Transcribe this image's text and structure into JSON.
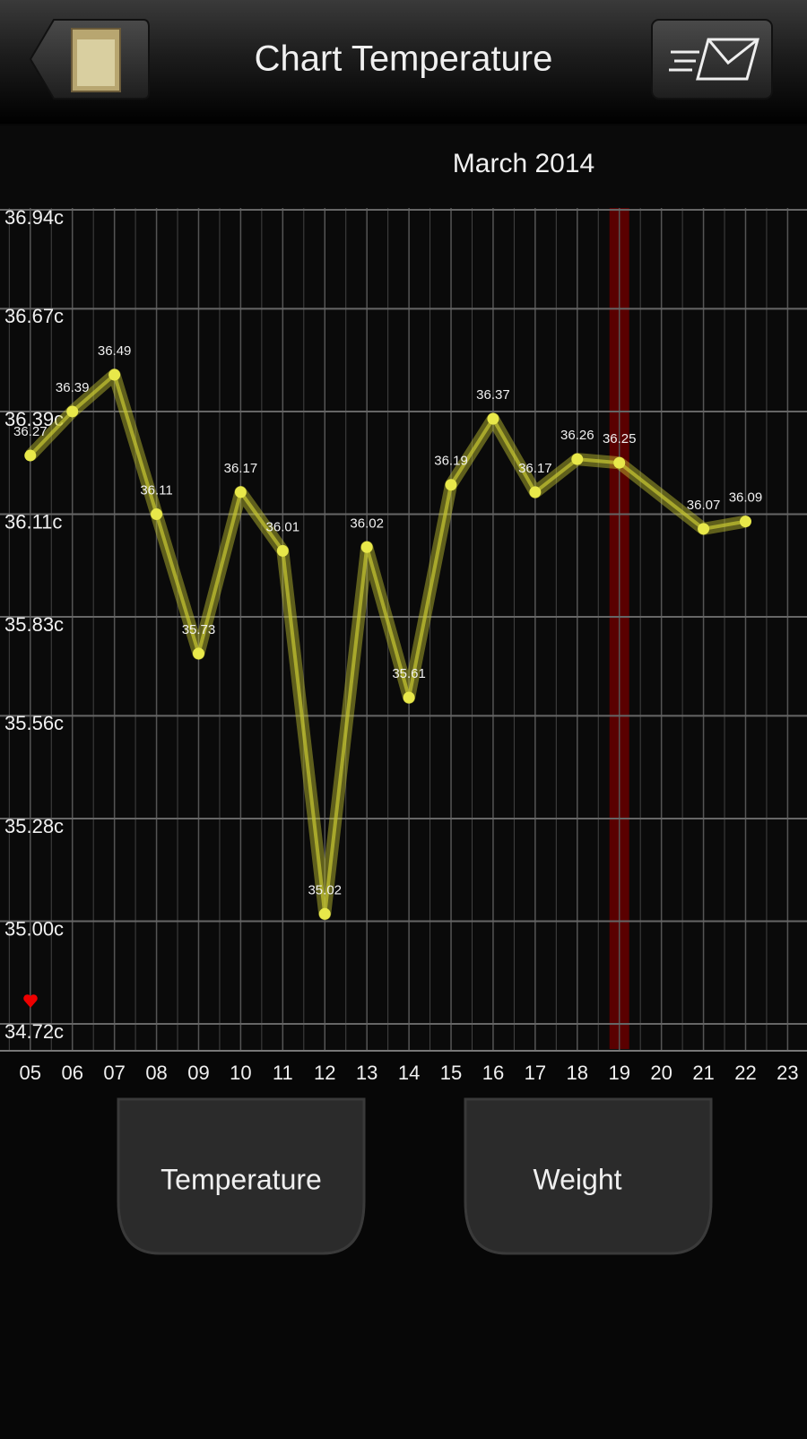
{
  "header": {
    "title": "Chart Temperature"
  },
  "chart_data": {
    "type": "line",
    "subtitle": "March 2014",
    "x": [
      5,
      6,
      7,
      8,
      9,
      10,
      11,
      12,
      13,
      14,
      15,
      16,
      17,
      18,
      19,
      21,
      22
    ],
    "series": [
      {
        "color": "#c8c832",
        "values": [
          36.27,
          36.39,
          36.49,
          36.11,
          35.73,
          36.17,
          36.01,
          35.02,
          36.02,
          35.61,
          36.19,
          36.37,
          36.17,
          36.26,
          36.25,
          36.07,
          36.09
        ]
      }
    ],
    "xlim": [
      4.28,
      23.46
    ],
    "xticks": [
      {
        "value": 5,
        "label": "05"
      },
      {
        "value": 6,
        "label": "06"
      },
      {
        "value": 7,
        "label": "07"
      },
      {
        "value": 8,
        "label": "08"
      },
      {
        "value": 9,
        "label": "09"
      },
      10,
      11,
      12,
      13,
      14,
      15,
      16,
      17,
      18,
      19,
      20,
      21,
      22,
      23
    ],
    "ylim": [
      34.72,
      36.94
    ],
    "yticks": [
      {
        "value": 36.94,
        "label": "36.94c"
      },
      {
        "value": 36.67,
        "label": "36.67c"
      },
      {
        "value": 36.39,
        "label": "36.39c"
      },
      {
        "value": 36.11,
        "label": "36.11c"
      },
      {
        "value": 35.83,
        "label": "35.83c"
      },
      {
        "value": 35.56,
        "label": "35.56c"
      },
      {
        "value": 35.28,
        "label": "35.28c"
      },
      {
        "value": 35.0,
        "label": "35.00c"
      },
      {
        "value": 34.72,
        "label": "34.72c"
      }
    ],
    "highlight_x": 19,
    "highlight_color": "#5a0000",
    "grid": true
  },
  "buttons": [
    "Temperature",
    "Weight"
  ]
}
